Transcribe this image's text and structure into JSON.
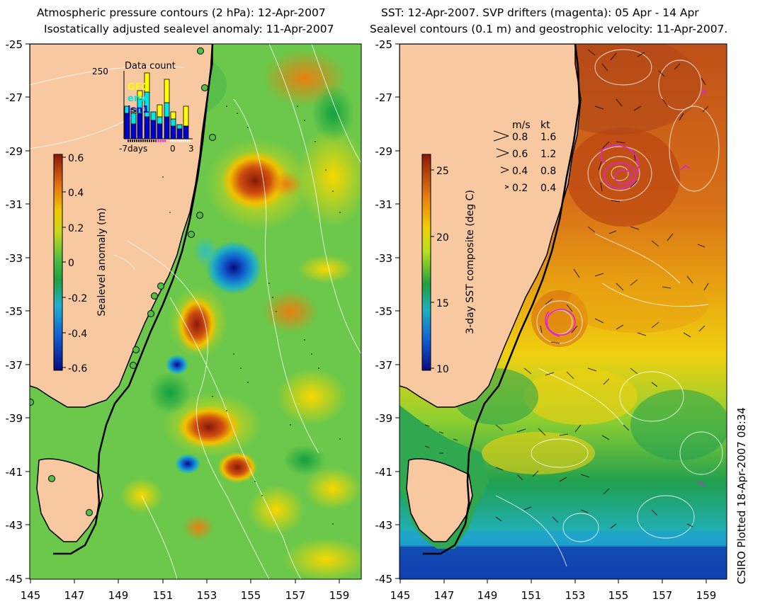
{
  "left_panel": {
    "title_line1": "Atmospheric pressure contours (2 hPa): 12-Apr-2007",
    "title_line2": "Isostatically adjusted sealevel anomaly: 11-Apr-2007",
    "colorbar": {
      "label": "Sealevel anomaly (m)",
      "ticks": [
        "0.6",
        "0.4",
        "0.2",
        "0",
        "-0.2",
        "-0.4",
        "-0.6"
      ]
    },
    "inset": {
      "title": "Data count",
      "ymax_label": "250",
      "x_labels": [
        "-7days",
        "0",
        "3"
      ],
      "legend": [
        {
          "name": "GFO",
          "color": "#ffff00"
        },
        {
          "name": "envi",
          "color": "#00e5e5"
        },
        {
          "name": "jsn1",
          "color": "#0000cc"
        }
      ]
    }
  },
  "right_panel": {
    "title_line1": "SST: 12-Apr-2007. SVP drifters (magenta): 05 Apr - 14 Apr",
    "title_line2": "Sealevel contours (0.1 m) and geostrophic velocity: 11-Apr-2007.",
    "colorbar": {
      "label": "3-day SST composite (deg C)",
      "ticks": [
        "25",
        "20",
        "15",
        "10"
      ]
    },
    "velocity_legend": {
      "headers": [
        "m/s",
        "kt"
      ],
      "rows": [
        {
          "ms": "0.8",
          "kt": "1.6"
        },
        {
          "ms": "0.6",
          "kt": "1.2"
        },
        {
          "ms": "0.4",
          "kt": "0.8"
        },
        {
          "ms": "0.2",
          "kt": "0.4"
        }
      ]
    }
  },
  "axes": {
    "lat_labels": [
      "-25",
      "-27",
      "-29",
      "-31",
      "-33",
      "-35",
      "-37",
      "-39",
      "-41",
      "-43",
      "-45"
    ],
    "lon_labels": [
      "145",
      "147",
      "149",
      "151",
      "153",
      "155",
      "157",
      "159"
    ]
  },
  "credit": "CSIRO Plotted 18-Apr-2007 08:34"
}
